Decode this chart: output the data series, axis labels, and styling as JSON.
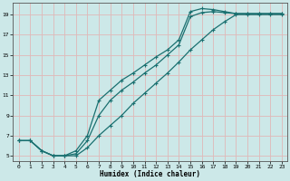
{
  "xlabel": "Humidex (Indice chaleur)",
  "bg_color": "#cce8e8",
  "line_color": "#1a7070",
  "grid_color": "#e0b8b8",
  "xlim": [
    -0.5,
    23.5
  ],
  "ylim": [
    4.5,
    20.2
  ],
  "xticks": [
    0,
    1,
    2,
    3,
    4,
    5,
    6,
    7,
    8,
    9,
    10,
    11,
    12,
    13,
    14,
    15,
    16,
    17,
    18,
    19,
    20,
    21,
    22,
    23
  ],
  "yticks": [
    5,
    7,
    9,
    11,
    13,
    15,
    17,
    19
  ],
  "line1_x": [
    0,
    1,
    2,
    3,
    4,
    5,
    6,
    7,
    8,
    9,
    10,
    11,
    12,
    13,
    14,
    15,
    16,
    17,
    18,
    19,
    20,
    21,
    22,
    23
  ],
  "line1_y": [
    6.5,
    6.5,
    5.5,
    5.0,
    5.0,
    5.5,
    7.0,
    10.5,
    11.5,
    12.5,
    13.2,
    14.0,
    14.8,
    15.5,
    16.5,
    19.3,
    19.6,
    19.5,
    19.3,
    19.1,
    19.1,
    19.1,
    19.1,
    19.1
  ],
  "line2_x": [
    0,
    1,
    2,
    3,
    4,
    5,
    6,
    7,
    8,
    9,
    10,
    11,
    12,
    13,
    14,
    15,
    16,
    17,
    18,
    19,
    20,
    21,
    22,
    23
  ],
  "line2_y": [
    6.5,
    6.5,
    5.5,
    5.0,
    5.0,
    5.2,
    6.5,
    9.0,
    10.5,
    11.5,
    12.3,
    13.2,
    14.0,
    15.0,
    16.0,
    18.8,
    19.2,
    19.3,
    19.2,
    19.1,
    19.1,
    19.1,
    19.1,
    19.1
  ],
  "line3_x": [
    0,
    1,
    2,
    3,
    4,
    5,
    6,
    7,
    8,
    9,
    10,
    11,
    12,
    13,
    14,
    15,
    16,
    17,
    18,
    19,
    20,
    21,
    22,
    23
  ],
  "line3_y": [
    6.5,
    6.5,
    5.5,
    5.0,
    5.0,
    5.0,
    5.8,
    7.0,
    8.0,
    9.0,
    10.2,
    11.2,
    12.2,
    13.2,
    14.3,
    15.5,
    16.5,
    17.5,
    18.3,
    19.0,
    19.0,
    19.0,
    19.0,
    19.0
  ]
}
